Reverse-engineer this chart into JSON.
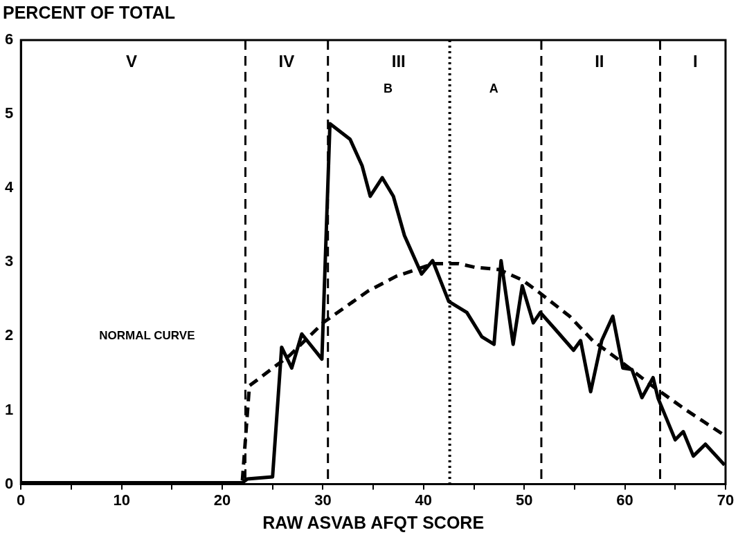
{
  "chart_data": {
    "type": "line",
    "xlabel": "RAW ASVAB AFQT SCORE",
    "ylabel": "PERCENT OF TOTAL",
    "xlim": [
      0,
      70
    ],
    "xticks": [
      0,
      {
        "value": 5,
        "label": null
      },
      10,
      {
        "value": 15,
        "label": null
      },
      20,
      {
        "value": 25,
        "label": null
      },
      30,
      {
        "value": 35,
        "label": null
      },
      40,
      {
        "value": 45,
        "label": null
      },
      50,
      {
        "value": 55,
        "label": null
      },
      60,
      {
        "value": 65,
        "label": null
      },
      70
    ],
    "ylim": [
      0,
      6
    ],
    "yticks": [
      0,
      1,
      2,
      3,
      4,
      5,
      6
    ],
    "grid": false,
    "legend": false,
    "marker": "none",
    "series": [
      {
        "color": "#000000",
        "line_style": "solid",
        "x": [
          0,
          10,
          20,
          22,
          22.5,
          25,
          25.9,
          26.9,
          27.9,
          29.9,
          30.7,
          32.7,
          33.9,
          34.7,
          35.9,
          37,
          38.1,
          39.8,
          40.9,
          42.5,
          44.3,
          45.8,
          47,
          47.7,
          48.9,
          49.8,
          50.9,
          51.6,
          53.1,
          54.9,
          55.6,
          56.6,
          57.7,
          58.8,
          59.8,
          60.7,
          61.7,
          62.8,
          63.3,
          65,
          65.8,
          66.8,
          68,
          69.9
        ],
        "values": [
          0.02,
          0.02,
          0.02,
          0.02,
          0.07,
          0.1,
          1.85,
          1.57,
          2.03,
          1.69,
          4.87,
          4.66,
          4.3,
          3.89,
          4.14,
          3.89,
          3.36,
          2.84,
          3.02,
          2.47,
          2.32,
          1.99,
          1.89,
          3.02,
          1.89,
          2.68,
          2.18,
          2.32,
          2.09,
          1.81,
          1.94,
          1.25,
          1.94,
          2.27,
          1.57,
          1.55,
          1.17,
          1.44,
          1.16,
          0.6,
          0.71,
          0.38,
          0.54,
          0.26
        ]
      },
      {
        "color": "#000000",
        "line_style": "dashed",
        "x": [
          22,
          22.7,
          26.7,
          30.1,
          34.5,
          37.3,
          41,
          43.5,
          45.1,
          47.5,
          49.8,
          51.4,
          54.5,
          56.8,
          59.1,
          62.6,
          66.1,
          69.9
        ],
        "values": [
          0.05,
          1.33,
          1.74,
          2.19,
          2.61,
          2.81,
          2.98,
          2.98,
          2.93,
          2.9,
          2.76,
          2.6,
          2.27,
          1.94,
          1.71,
          1.34,
          1.0,
          0.66
        ]
      }
    ],
    "ref_lines": [
      {
        "axis": "x",
        "value": 22.3,
        "line_style": "dashed"
      },
      {
        "axis": "x",
        "value": 30.5,
        "line_style": "dashed"
      },
      {
        "axis": "x",
        "value": 42.6,
        "line_style": "dotted"
      },
      {
        "axis": "x",
        "value": 51.7,
        "line_style": "dashed"
      },
      {
        "axis": "x",
        "value": 63.5,
        "line_style": "dashed"
      }
    ],
    "annotations": [
      "V",
      "IV",
      "III",
      "II",
      "I",
      "B",
      "A",
      "NORMAL CURVE"
    ]
  }
}
